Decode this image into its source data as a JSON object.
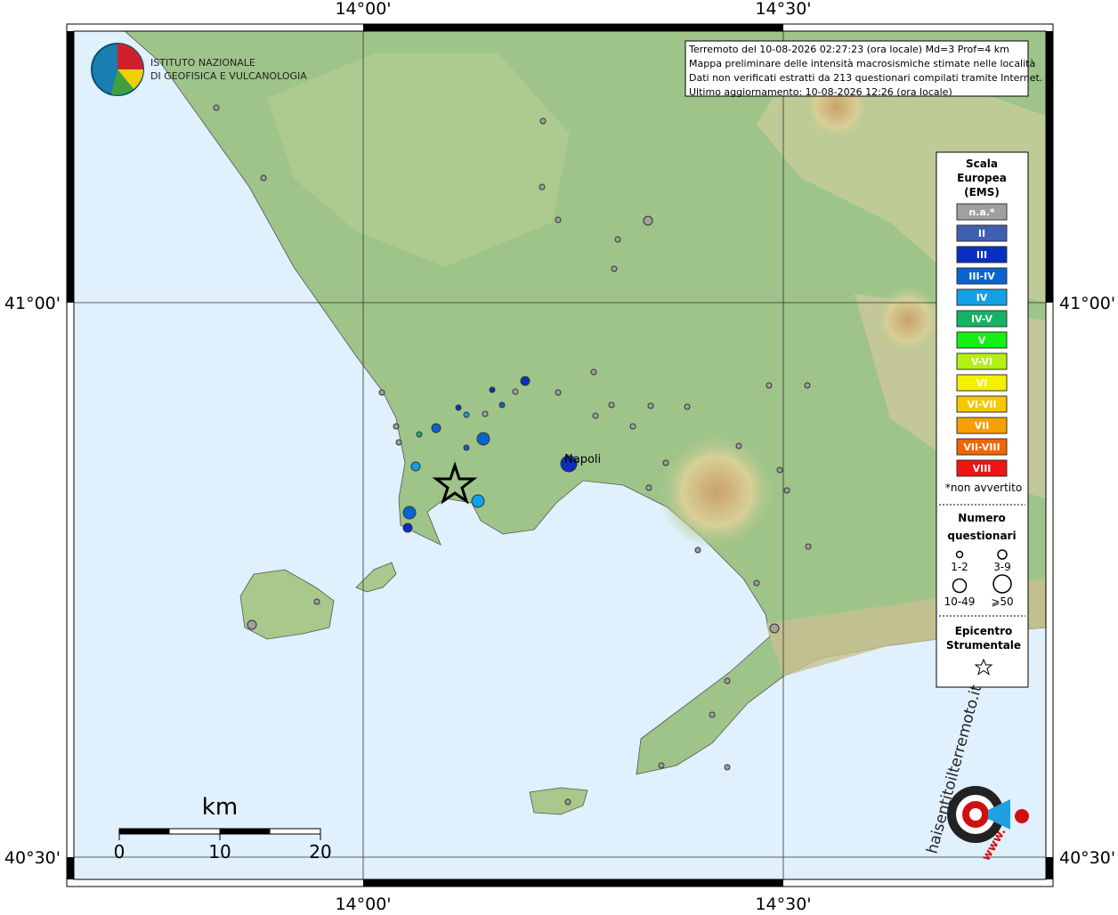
{
  "axes": {
    "top": [
      "14°00'",
      "14°30'"
    ],
    "bottom": [
      "14°00'",
      "14°30'"
    ],
    "left": [
      "41°00'",
      "40°30'"
    ],
    "right": [
      "41°00'",
      "40°30'"
    ]
  },
  "logo": {
    "line1": "ISTITUTO NAZIONALE",
    "line2": "DI GEOFISICA E VULCANOLOGIA"
  },
  "header": [
    "Terremoto del 10-08-2026 02:27:23 (ora locale) Md=3 Prof=4 km",
    "Mappa preliminare delle intensità macrosismiche stimate nelle località",
    "Dati non verificati estratti da 213 questionari compilati tramite Internet.",
    "Ultimo aggiornamento: 10-08-2026 12:26 (ora locale)"
  ],
  "legend": {
    "title": [
      "Scala",
      "Europea",
      "(EMS)"
    ],
    "items": [
      {
        "label": "n.a.*",
        "color": "#a0a0a0"
      },
      {
        "label": "II",
        "color": "#3f5fb0"
      },
      {
        "label": "III",
        "color": "#0a2fc0"
      },
      {
        "label": "III-IV",
        "color": "#0a64d0"
      },
      {
        "label": "IV",
        "color": "#14a0e6"
      },
      {
        "label": "IV-V",
        "color": "#14b464"
      },
      {
        "label": "V",
        "color": "#14f014"
      },
      {
        "label": "V-VI",
        "color": "#b4f014"
      },
      {
        "label": "VI",
        "color": "#f5f000"
      },
      {
        "label": "VI-VII",
        "color": "#f5c800"
      },
      {
        "label": "VII",
        "color": "#f5a000"
      },
      {
        "label": "VII-VIII",
        "color": "#f56400"
      },
      {
        "label": "VIII",
        "color": "#f01414"
      }
    ],
    "note": "*non avvertito",
    "count_title": [
      "Numero",
      "questionari"
    ],
    "count_classes": [
      "1-2",
      "3-9",
      "10-49",
      "⩾50"
    ],
    "epicenter_title": [
      "Epicentro",
      "Strumentale"
    ]
  },
  "places": [
    "Napoli"
  ],
  "scale": {
    "unit": "km",
    "labels": [
      "0",
      "10",
      "20"
    ]
  },
  "site": {
    "name": "haisentitoilterremoto.it",
    "prefix": "www."
  }
}
